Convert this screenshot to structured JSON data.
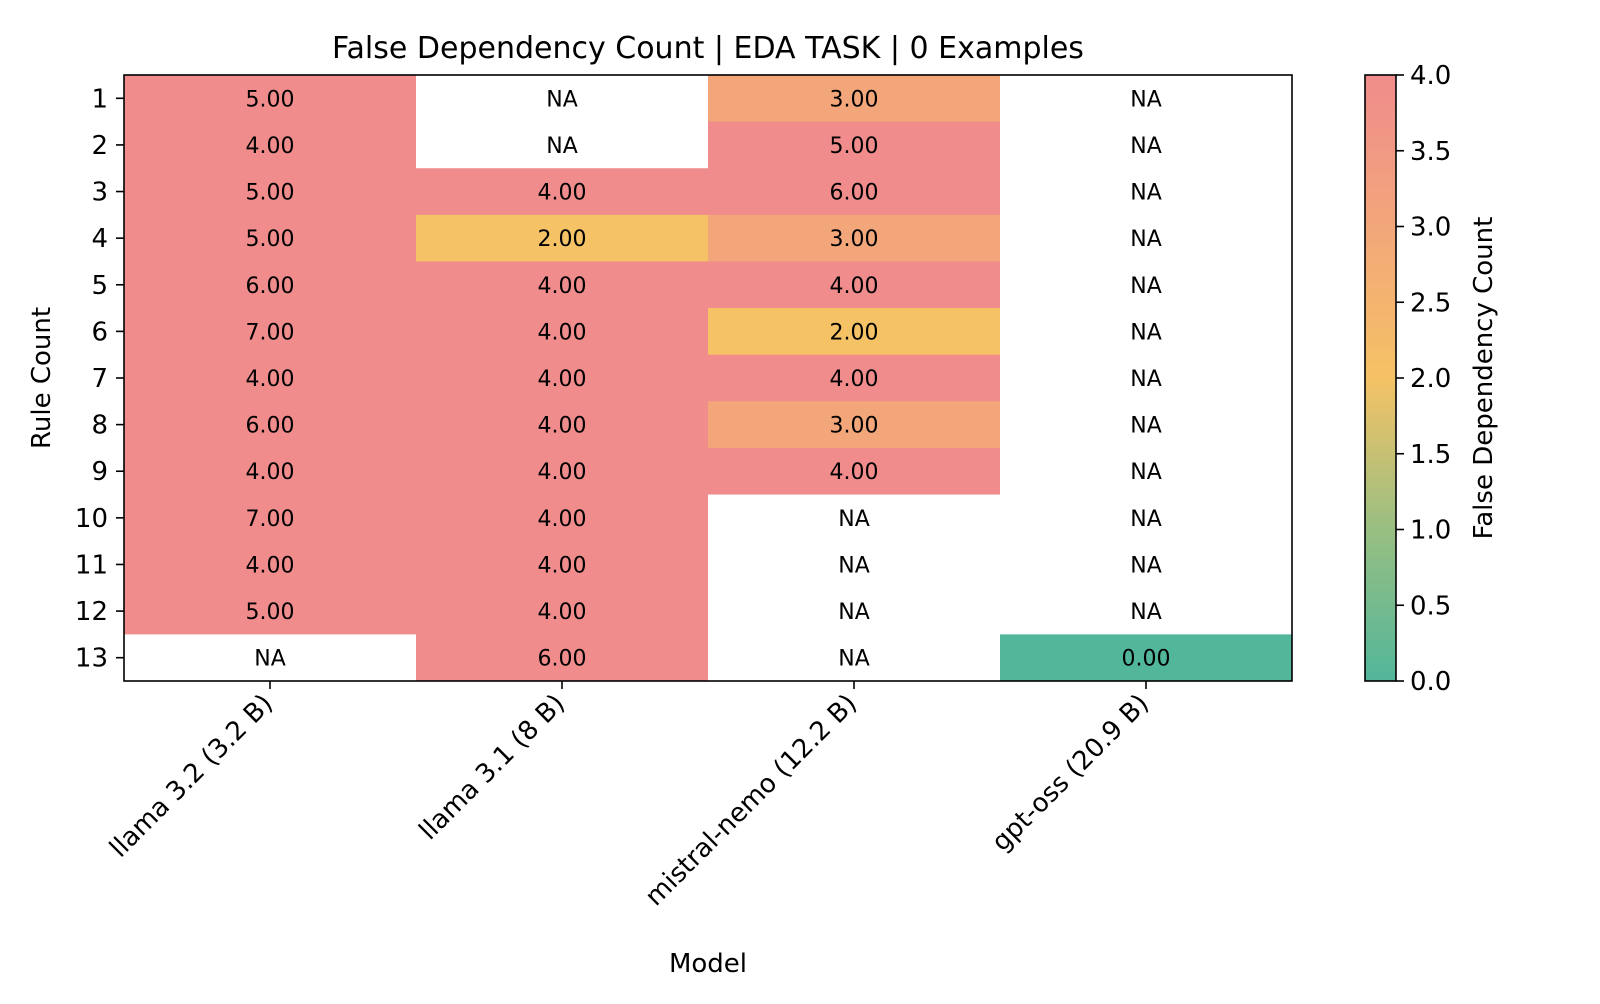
{
  "chart_data": {
    "type": "heatmap",
    "title": "False Dependency Count | EDA TASK | 0 Examples",
    "xlabel": "Model",
    "ylabel": "Rule Count",
    "x_categories": [
      "llama 3.2 (3.2 B)",
      "llama 3.1 (8 B)",
      "mistral-nemo (12.2 B)",
      "gpt-oss (20.9 B)"
    ],
    "y_categories": [
      "1",
      "2",
      "3",
      "4",
      "5",
      "6",
      "7",
      "8",
      "9",
      "10",
      "11",
      "12",
      "13"
    ],
    "values": [
      [
        5,
        null,
        3,
        null
      ],
      [
        4,
        null,
        5,
        null
      ],
      [
        5,
        4,
        6,
        null
      ],
      [
        5,
        2,
        3,
        null
      ],
      [
        6,
        4,
        4,
        null
      ],
      [
        7,
        4,
        2,
        null
      ],
      [
        4,
        4,
        4,
        null
      ],
      [
        6,
        4,
        3,
        null
      ],
      [
        4,
        4,
        4,
        null
      ],
      [
        7,
        4,
        null,
        null
      ],
      [
        4,
        4,
        null,
        null
      ],
      [
        5,
        4,
        null,
        null
      ],
      [
        null,
        6,
        null,
        0
      ]
    ],
    "missing_label": "NA",
    "value_format_decimals": 2,
    "colorbar": {
      "label": "False Dependency Count",
      "range": [
        0.0,
        4.0
      ],
      "ticks": [
        "0.0",
        "0.5",
        "1.0",
        "1.5",
        "2.0",
        "2.5",
        "3.0",
        "3.5",
        "4.0"
      ],
      "colors": {
        "0": "#52b69a",
        "1": "#98bf82",
        "2": "#f5c265",
        "3": "#f2a67a",
        "4": "#f08c8c"
      }
    },
    "grid": false
  }
}
